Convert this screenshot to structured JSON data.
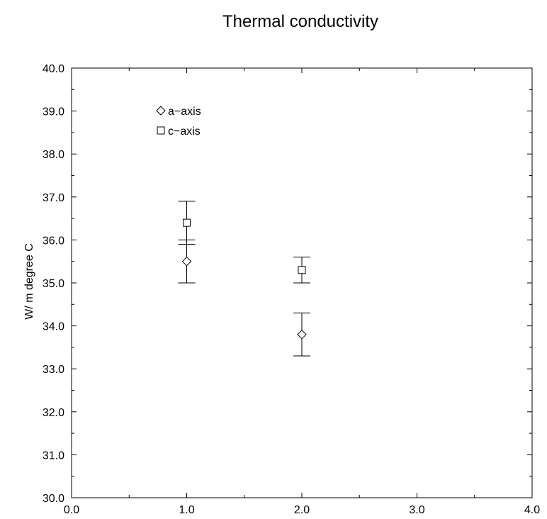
{
  "chart_data": {
    "type": "scatter",
    "title": "Thermal conductivity",
    "xlabel": "",
    "ylabel": "W/ m degree C",
    "xlim": [
      0.0,
      4.0
    ],
    "ylim": [
      30.0,
      40.0
    ],
    "x_ticks": [
      "0.0",
      "1.0",
      "2.0",
      "3.0",
      "4.0"
    ],
    "y_ticks": [
      "30.0",
      "31.0",
      "32.0",
      "33.0",
      "34.0",
      "35.0",
      "36.0",
      "37.0",
      "38.0",
      "39.0",
      "40.0"
    ],
    "grid": false,
    "legend_position": "top-left",
    "series": [
      {
        "name": "a−axis",
        "marker": "diamond",
        "points": [
          {
            "x": 1.0,
            "y": 35.5,
            "err_low": 35.0,
            "err_high": 36.0
          },
          {
            "x": 2.0,
            "y": 33.8,
            "err_low": 33.3,
            "err_high": 34.3
          }
        ]
      },
      {
        "name": "c−axis",
        "marker": "square",
        "points": [
          {
            "x": 1.0,
            "y": 36.4,
            "err_low": 35.9,
            "err_high": 36.9
          },
          {
            "x": 2.0,
            "y": 35.3,
            "err_low": 35.0,
            "err_high": 35.6
          }
        ]
      }
    ]
  }
}
